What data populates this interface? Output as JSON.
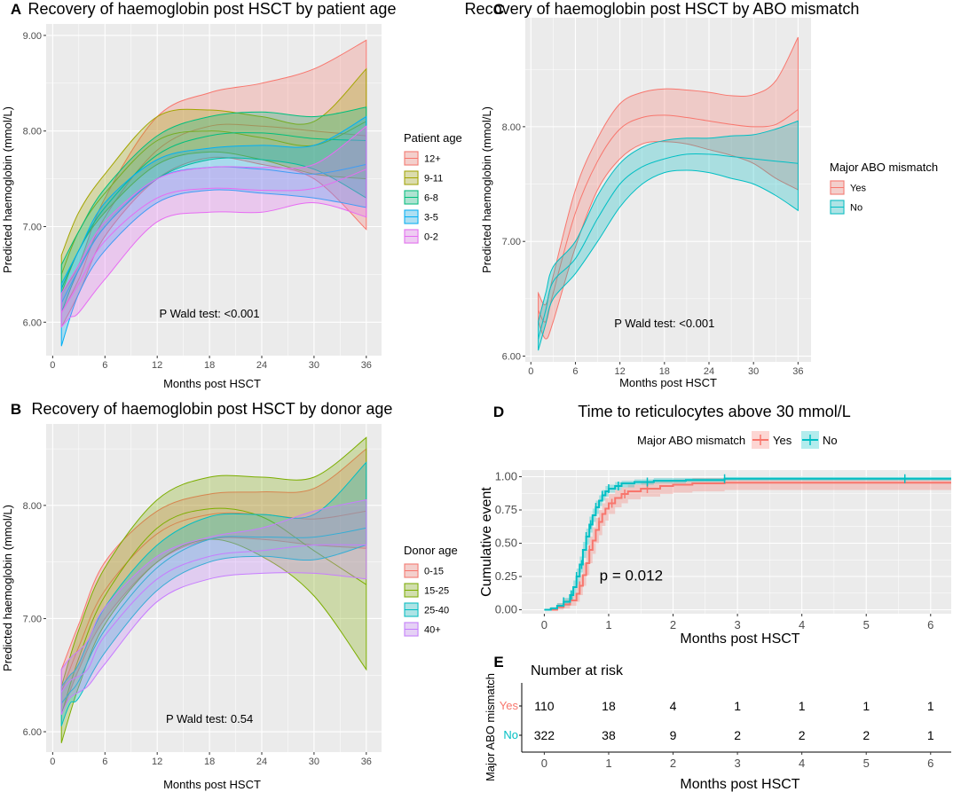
{
  "colors": {
    "panel_bg": "#ebebeb",
    "grid": "#ffffff",
    "age_12plus": "#F8766D",
    "age_9_11": "#A3A500",
    "age_6_8": "#00BF7D",
    "age_3_5": "#00B0F6",
    "age_0_2": "#E76BF3",
    "donor_0_15": "#F8766D",
    "donor_15_25": "#7CAE00",
    "donor_25_40": "#00BFC4",
    "donor_40plus": "#C77CFF",
    "abo_yes": "#F8766D",
    "abo_no": "#00BFC4"
  },
  "chart_data": [
    {
      "id": "A",
      "panel_label": "A",
      "type": "area",
      "title": "Recovery of haemoglobin post HSCT by patient age",
      "xlabel": "Months post HSCT",
      "ylabel": "Predicted haemoglobin (mmol/L)",
      "xlim": [
        -0.75,
        37.75
      ],
      "ylim": [
        5.65,
        9.12
      ],
      "xticks": [
        0,
        6,
        12,
        18,
        24,
        30,
        36
      ],
      "xtick_labels": [
        "0",
        "6",
        "12",
        "18",
        "24",
        "30",
        "36"
      ],
      "yticks": [
        6.0,
        7.0,
        8.0,
        9.0
      ],
      "ytick_labels": [
        "6.00",
        "7.00",
        "8.00",
        "9.00"
      ],
      "annotation": "P Wald test: <0.001",
      "annotation_xy": [
        18,
        6.05
      ],
      "legend": {
        "title": "Patient age",
        "position": "right"
      },
      "series": [
        {
          "name": "12+",
          "color_key": "age_12plus",
          "x": [
            1,
            3,
            6,
            12,
            18,
            24,
            30,
            36
          ],
          "upper": [
            6.3,
            6.6,
            7.3,
            8.15,
            8.4,
            8.5,
            8.65,
            8.95
          ],
          "fit": [
            6.1,
            6.45,
            7.1,
            7.8,
            8.05,
            8.05,
            8.0,
            7.95
          ],
          "lower": [
            5.95,
            6.3,
            6.9,
            7.5,
            7.72,
            7.65,
            7.5,
            6.97
          ]
        },
        {
          "name": "9-11",
          "color_key": "age_9_11",
          "x": [
            1,
            3,
            6,
            12,
            18,
            24,
            30,
            36
          ],
          "upper": [
            6.7,
            7.15,
            7.55,
            8.15,
            8.22,
            8.15,
            8.1,
            8.65
          ],
          "fit": [
            6.5,
            6.95,
            7.35,
            7.9,
            8.0,
            7.93,
            7.85,
            8.1
          ],
          "lower": [
            6.3,
            6.75,
            7.15,
            7.65,
            7.78,
            7.7,
            7.55,
            7.5
          ]
        },
        {
          "name": "6-8",
          "color_key": "age_6_8",
          "x": [
            1,
            3,
            6,
            12,
            18,
            24,
            30,
            36
          ],
          "upper": [
            6.6,
            6.95,
            7.4,
            7.95,
            8.15,
            8.2,
            8.15,
            8.25
          ],
          "fit": [
            6.35,
            6.75,
            7.2,
            7.75,
            7.95,
            7.98,
            7.92,
            7.9
          ],
          "lower": [
            6.1,
            6.55,
            7.0,
            7.5,
            7.7,
            7.7,
            7.6,
            7.3
          ]
        },
        {
          "name": "3-5",
          "color_key": "age_3_5",
          "x": [
            1,
            3,
            6,
            12,
            18,
            24,
            30,
            36
          ],
          "upper": [
            6.4,
            6.75,
            7.25,
            7.7,
            7.82,
            7.85,
            7.85,
            8.15
          ],
          "fit": [
            6.2,
            6.55,
            7.0,
            7.5,
            7.62,
            7.6,
            7.55,
            7.65
          ],
          "lower": [
            5.75,
            6.3,
            6.75,
            7.25,
            7.38,
            7.35,
            7.3,
            7.2
          ]
        },
        {
          "name": "0-2",
          "color_key": "age_0_2",
          "x": [
            1,
            2,
            3,
            6,
            12,
            18,
            24,
            30,
            36
          ],
          "upper": [
            6.3,
            6.45,
            6.6,
            7.05,
            7.5,
            7.62,
            7.62,
            7.65,
            8.05
          ],
          "fit": [
            6.1,
            6.25,
            6.4,
            6.85,
            7.3,
            7.4,
            7.38,
            7.4,
            7.6
          ],
          "lower": [
            5.95,
            6.05,
            6.1,
            6.45,
            7.05,
            7.15,
            7.15,
            7.25,
            7.1
          ]
        }
      ]
    },
    {
      "id": "B",
      "panel_label": "B",
      "type": "area",
      "title": "Recovery of haemoglobin post HSCT by donor age",
      "xlabel": "Months post HSCT",
      "ylabel": "Predicted haemoglobin (mmol/L)",
      "xlim": [
        -0.75,
        37.75
      ],
      "ylim": [
        5.82,
        8.72
      ],
      "xticks": [
        0,
        6,
        12,
        18,
        24,
        30,
        36
      ],
      "xtick_labels": [
        "0",
        "6",
        "12",
        "18",
        "24",
        "30",
        "36"
      ],
      "yticks": [
        6.0,
        7.0,
        8.0
      ],
      "ytick_labels": [
        "6.00",
        "7.00",
        "8.00"
      ],
      "annotation": "P Wald test: 0.54",
      "annotation_xy": [
        18,
        6.08
      ],
      "legend": {
        "title": "Donor age",
        "position": "right"
      },
      "series": [
        {
          "name": "0-15",
          "color_key": "donor_0_15",
          "x": [
            1,
            3,
            6,
            12,
            18,
            24,
            30,
            36
          ],
          "upper": [
            6.55,
            6.95,
            7.5,
            7.95,
            8.1,
            8.12,
            8.15,
            8.5
          ],
          "fit": [
            6.35,
            6.75,
            7.25,
            7.75,
            7.92,
            7.92,
            7.88,
            7.95
          ],
          "lower": [
            6.15,
            6.55,
            7.0,
            7.5,
            7.7,
            7.7,
            7.65,
            7.62
          ]
        },
        {
          "name": "15-25",
          "color_key": "donor_15_25",
          "x": [
            1,
            3,
            6,
            12,
            18,
            24,
            30,
            36
          ],
          "upper": [
            6.4,
            6.9,
            7.45,
            8.05,
            8.25,
            8.25,
            8.25,
            8.6
          ],
          "fit": [
            6.15,
            6.65,
            7.2,
            7.8,
            7.97,
            7.9,
            7.6,
            7.3
          ],
          "lower": [
            5.9,
            6.4,
            6.95,
            7.5,
            7.7,
            7.55,
            7.2,
            6.55
          ]
        },
        {
          "name": "25-40",
          "color_key": "donor_25_40",
          "x": [
            1,
            2,
            3,
            6,
            12,
            18,
            24,
            30,
            36
          ],
          "upper": [
            6.4,
            6.5,
            6.6,
            7.1,
            7.65,
            7.9,
            7.92,
            7.92,
            8.38
          ],
          "fit": [
            6.25,
            6.35,
            6.45,
            6.9,
            7.45,
            7.7,
            7.72,
            7.72,
            7.8
          ],
          "lower": [
            6.05,
            6.25,
            6.3,
            6.7,
            7.25,
            7.5,
            7.55,
            7.52,
            7.65
          ]
        },
        {
          "name": "40+",
          "color_key": "donor_40plus",
          "x": [
            1,
            2,
            4,
            6,
            12,
            18,
            24,
            30,
            36
          ],
          "upper": [
            6.55,
            6.65,
            6.8,
            7.1,
            7.55,
            7.72,
            7.8,
            7.95,
            8.05
          ],
          "fit": [
            6.35,
            6.45,
            6.55,
            6.85,
            7.35,
            7.55,
            7.6,
            7.65,
            7.65
          ],
          "lower": [
            6.15,
            6.3,
            6.4,
            6.6,
            7.15,
            7.35,
            7.4,
            7.4,
            7.35
          ]
        }
      ]
    },
    {
      "id": "C",
      "panel_label": "C",
      "type": "area",
      "title": "Recovery of haemoglobin post HSCT by ABO mismatch",
      "xlabel": "Months post HSCT",
      "ylabel": "Predicted haemoglobin (mmol/L)",
      "xlim": [
        -0.75,
        37.75
      ],
      "ylim": [
        5.95,
        8.95
      ],
      "xticks": [
        0,
        6,
        12,
        18,
        24,
        30,
        36
      ],
      "xtick_labels": [
        "0",
        "6",
        "12",
        "18",
        "24",
        "30",
        "36"
      ],
      "yticks": [
        6.0,
        7.0,
        8.0
      ],
      "ytick_labels": [
        "6.00",
        "7.00",
        "8.00"
      ],
      "annotation": "P Wald test: <0.001",
      "annotation_xy": [
        18,
        6.25
      ],
      "legend": {
        "title": "Major ABO mismatch",
        "position": "right"
      },
      "series": [
        {
          "name": "Yes",
          "color_key": "abo_yes",
          "x": [
            1,
            2,
            3,
            6,
            9,
            12,
            15,
            18,
            21,
            24,
            27,
            30,
            33,
            36
          ],
          "upper": [
            6.55,
            6.45,
            6.7,
            7.45,
            7.9,
            8.2,
            8.3,
            8.33,
            8.32,
            8.3,
            8.27,
            8.28,
            8.4,
            8.78
          ],
          "fit": [
            6.4,
            6.3,
            6.55,
            7.25,
            7.7,
            7.98,
            8.08,
            8.1,
            8.08,
            8.05,
            8.02,
            8.0,
            8.02,
            8.15
          ],
          "lower": [
            6.3,
            6.15,
            6.3,
            6.95,
            7.45,
            7.72,
            7.85,
            7.87,
            7.85,
            7.8,
            7.75,
            7.68,
            7.55,
            7.45
          ]
        },
        {
          "name": "No",
          "color_key": "abo_no",
          "x": [
            1,
            2,
            3,
            6,
            9,
            12,
            15,
            18,
            21,
            24,
            27,
            30,
            33,
            36
          ],
          "upper": [
            6.3,
            6.55,
            6.78,
            7.0,
            7.4,
            7.68,
            7.82,
            7.88,
            7.9,
            7.9,
            7.92,
            7.93,
            7.98,
            8.05
          ],
          "fit": [
            6.15,
            6.4,
            6.65,
            6.85,
            7.2,
            7.5,
            7.65,
            7.72,
            7.76,
            7.76,
            7.74,
            7.72,
            7.7,
            7.68
          ],
          "lower": [
            6.05,
            6.28,
            6.5,
            6.72,
            7.0,
            7.3,
            7.5,
            7.6,
            7.62,
            7.6,
            7.55,
            7.5,
            7.4,
            7.27
          ]
        }
      ]
    },
    {
      "id": "D",
      "panel_label": "D",
      "type": "line",
      "subtype": "kaplan-meier-step",
      "title": "Time to reticulocytes above 30 mmol/L",
      "xlabel": "Months post HSCT",
      "ylabel": "Cumulative event",
      "xlim": [
        -0.35,
        6.32
      ],
      "ylim": [
        -0.03,
        1.05
      ],
      "xticks": [
        0,
        1,
        2,
        3,
        4,
        5,
        6
      ],
      "xtick_labels": [
        "0",
        "1",
        "2",
        "3",
        "4",
        "5",
        "6"
      ],
      "yticks": [
        0,
        0.25,
        0.5,
        0.75,
        1.0
      ],
      "ytick_labels": [
        "0.00",
        "0.25",
        "0.50",
        "0.75",
        "1.00"
      ],
      "annotation": "p = 0.012",
      "annotation_xy": [
        1.35,
        0.22
      ],
      "legend": {
        "title": "Major ABO mismatch",
        "position": "top"
      },
      "series": [
        {
          "name": "Yes",
          "color_key": "abo_yes",
          "x": [
            0,
            0.2,
            0.3,
            0.4,
            0.5,
            0.55,
            0.6,
            0.65,
            0.7,
            0.75,
            0.8,
            0.85,
            0.9,
            0.95,
            1.0,
            1.1,
            1.2,
            1.3,
            1.5,
            1.8,
            2.0,
            2.3,
            2.8,
            6.32
          ],
          "y": [
            0,
            0.02,
            0.04,
            0.07,
            0.12,
            0.18,
            0.26,
            0.35,
            0.45,
            0.52,
            0.6,
            0.66,
            0.72,
            0.76,
            0.8,
            0.84,
            0.87,
            0.89,
            0.91,
            0.93,
            0.94,
            0.95,
            0.955,
            0.955
          ],
          "upper": [
            0,
            0.05,
            0.08,
            0.12,
            0.19,
            0.26,
            0.35,
            0.45,
            0.55,
            0.62,
            0.69,
            0.75,
            0.8,
            0.84,
            0.87,
            0.9,
            0.92,
            0.94,
            0.96,
            0.97,
            0.98,
            0.99,
            0.99,
            0.99
          ],
          "lower": [
            0,
            0,
            0.01,
            0.03,
            0.06,
            0.11,
            0.18,
            0.26,
            0.35,
            0.42,
            0.5,
            0.56,
            0.63,
            0.67,
            0.72,
            0.77,
            0.8,
            0.83,
            0.85,
            0.87,
            0.88,
            0.89,
            0.9,
            0.9
          ],
          "censor_x": [
            0.55,
            0.7,
            0.85,
            1.05,
            1.25,
            1.6
          ]
        },
        {
          "name": "No",
          "color_key": "abo_no",
          "x": [
            0,
            0.1,
            0.2,
            0.3,
            0.4,
            0.45,
            0.5,
            0.55,
            0.6,
            0.65,
            0.7,
            0.75,
            0.8,
            0.85,
            0.9,
            0.95,
            1.0,
            1.1,
            1.2,
            1.4,
            1.7,
            2.2,
            2.8,
            6.32
          ],
          "y": [
            0,
            0.01,
            0.03,
            0.06,
            0.11,
            0.17,
            0.25,
            0.34,
            0.45,
            0.55,
            0.64,
            0.71,
            0.77,
            0.82,
            0.86,
            0.89,
            0.91,
            0.93,
            0.95,
            0.96,
            0.97,
            0.975,
            0.985,
            0.985
          ],
          "upper": [
            0,
            0.02,
            0.05,
            0.09,
            0.15,
            0.22,
            0.31,
            0.4,
            0.51,
            0.61,
            0.7,
            0.76,
            0.82,
            0.86,
            0.9,
            0.93,
            0.94,
            0.96,
            0.97,
            0.98,
            0.99,
            0.99,
            1.0,
            1.0
          ],
          "lower": [
            0,
            0,
            0.01,
            0.03,
            0.07,
            0.12,
            0.19,
            0.28,
            0.39,
            0.49,
            0.58,
            0.66,
            0.72,
            0.78,
            0.82,
            0.85,
            0.88,
            0.9,
            0.92,
            0.94,
            0.95,
            0.96,
            0.97,
            0.97
          ],
          "censor_x": [
            0.3,
            0.42,
            0.5,
            0.58,
            0.65,
            0.72,
            0.8,
            0.9,
            1.0,
            1.15,
            1.6,
            2.8,
            5.6
          ]
        }
      ]
    },
    {
      "id": "E",
      "panel_label": "E",
      "type": "table",
      "title": "Number at risk",
      "xlabel": "Months post HSCT",
      "ylabel": "Major ABO mismatch",
      "xlim": [
        -0.35,
        6.32
      ],
      "xticks": [
        0,
        1,
        2,
        3,
        4,
        5,
        6
      ],
      "xtick_labels": [
        "0",
        "1",
        "2",
        "3",
        "4",
        "5",
        "6"
      ],
      "rows": [
        {
          "name": "Yes",
          "color_key": "abo_yes",
          "values": [
            "110",
            "18",
            "4",
            "1",
            "1",
            "1",
            "1"
          ]
        },
        {
          "name": "No",
          "color_key": "abo_no",
          "values": [
            "322",
            "38",
            "9",
            "2",
            "2",
            "2",
            "1"
          ]
        }
      ]
    }
  ]
}
